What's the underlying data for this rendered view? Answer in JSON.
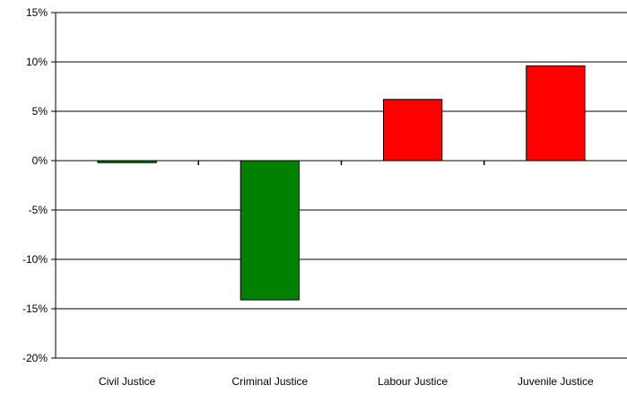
{
  "chart_data": {
    "type": "bar",
    "title": "",
    "xlabel": "",
    "ylabel": "",
    "categories": [
      "Civil Justice",
      "Criminal Justice",
      "Labour Justice",
      "Juvenile Justice"
    ],
    "values": [
      -0.2,
      -14.1,
      6.2,
      9.6
    ],
    "bar_colors": [
      "#008000",
      "#008000",
      "#ff0000",
      "#ff0000"
    ],
    "ylim": [
      -20,
      15
    ],
    "y_ticks": [
      15,
      10,
      5,
      0,
      -5,
      -10,
      -15,
      -20
    ],
    "y_tick_labels": [
      "15%",
      "10%",
      "5%",
      "0%",
      "-5%",
      "-10%",
      "-15%",
      "-20%"
    ],
    "grid": true,
    "legend": "none"
  }
}
